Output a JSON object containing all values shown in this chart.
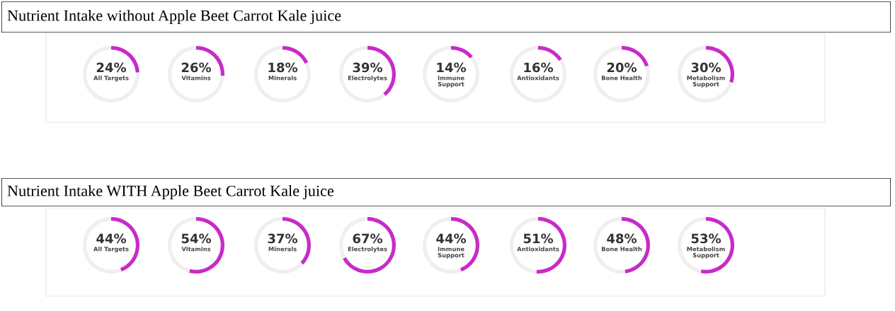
{
  "chart_data": [
    {
      "type": "other",
      "title": "Nutrient Intake without Apple Beet Carrot Kale juice"
    },
    {
      "type": "donut",
      "categories": [
        "All Targets",
        null
      ],
      "values": [
        24,
        76
      ],
      "colors": [
        "#c72bc9",
        "#efefef"
      ],
      "value_labels": [
        "24%",
        null
      ]
    },
    {
      "type": "donut",
      "categories": [
        "Vitamins",
        null
      ],
      "values": [
        26,
        74
      ],
      "colors": [
        "#c72bc9",
        "#efefef"
      ],
      "value_labels": [
        "26%",
        null
      ]
    },
    {
      "type": "donut",
      "categories": [
        "Minerals",
        null
      ],
      "values": [
        18,
        82
      ],
      "colors": [
        "#c72bc9",
        "#efefef"
      ],
      "value_labels": [
        "18%",
        null
      ]
    },
    {
      "type": "donut",
      "categories": [
        "Electrolytes",
        null
      ],
      "values": [
        39,
        61
      ],
      "colors": [
        "#c72bc9",
        "#efefef"
      ],
      "value_labels": [
        "39%",
        null
      ]
    },
    {
      "type": "donut",
      "categories": [
        "Immune\nSupport",
        null
      ],
      "values": [
        14,
        86
      ],
      "colors": [
        "#c72bc9",
        "#efefef"
      ],
      "value_labels": [
        "14%",
        null
      ]
    },
    {
      "type": "donut",
      "categories": [
        "Antioxidants",
        null
      ],
      "values": [
        16,
        84
      ],
      "colors": [
        "#c72bc9",
        "#efefef"
      ],
      "value_labels": [
        "16%",
        null
      ]
    },
    {
      "type": "donut",
      "categories": [
        "Bone Health",
        null
      ],
      "values": [
        20,
        80
      ],
      "colors": [
        "#c72bc9",
        "#efefef"
      ],
      "value_labels": [
        "20%",
        null
      ]
    },
    {
      "type": "donut",
      "categories": [
        "Metabolism\nSupport",
        null
      ],
      "values": [
        30,
        70
      ],
      "colors": [
        "#c72bc9",
        "#efefef"
      ],
      "value_labels": [
        "30%",
        null
      ]
    },
    {
      "type": "other",
      "title": "Nutrient Intake WITH Apple Beet Carrot Kale juice"
    },
    {
      "type": "donut",
      "categories": [
        "All Targets",
        null
      ],
      "values": [
        44,
        56
      ],
      "colors": [
        "#c72bc9",
        "#efefef"
      ],
      "value_labels": [
        "44%",
        null
      ]
    },
    {
      "type": "donut",
      "categories": [
        "Vitamins",
        null
      ],
      "values": [
        54,
        46
      ],
      "colors": [
        "#c72bc9",
        "#efefef"
      ],
      "value_labels": [
        "54%",
        null
      ]
    },
    {
      "type": "donut",
      "categories": [
        "Minerals",
        null
      ],
      "values": [
        37,
        63
      ],
      "colors": [
        "#c72bc9",
        "#efefef"
      ],
      "value_labels": [
        "37%",
        null
      ]
    },
    {
      "type": "donut",
      "categories": [
        "Electrolytes",
        null
      ],
      "values": [
        67,
        33
      ],
      "colors": [
        "#c72bc9",
        "#efefef"
      ],
      "value_labels": [
        "67%",
        null
      ]
    },
    {
      "type": "donut",
      "categories": [
        "Immune\nSupport",
        null
      ],
      "values": [
        44,
        56
      ],
      "colors": [
        "#c72bc9",
        "#efefef"
      ],
      "value_labels": [
        "44%",
        null
      ]
    },
    {
      "type": "donut",
      "categories": [
        "Antioxidants",
        null
      ],
      "values": [
        51,
        49
      ],
      "colors": [
        "#c72bc9",
        "#efefef"
      ],
      "value_labels": [
        "51%",
        null
      ]
    },
    {
      "type": "donut",
      "categories": [
        "Bone Health",
        null
      ],
      "values": [
        48,
        52
      ],
      "colors": [
        "#c72bc9",
        "#efefef"
      ],
      "value_labels": [
        "48%",
        null
      ]
    },
    {
      "type": "donut",
      "categories": [
        "Metabolism\nSupport",
        null
      ],
      "values": [
        53,
        47
      ],
      "colors": [
        "#c72bc9",
        "#efefef"
      ],
      "value_labels": [
        "53%",
        null
      ]
    }
  ]
}
